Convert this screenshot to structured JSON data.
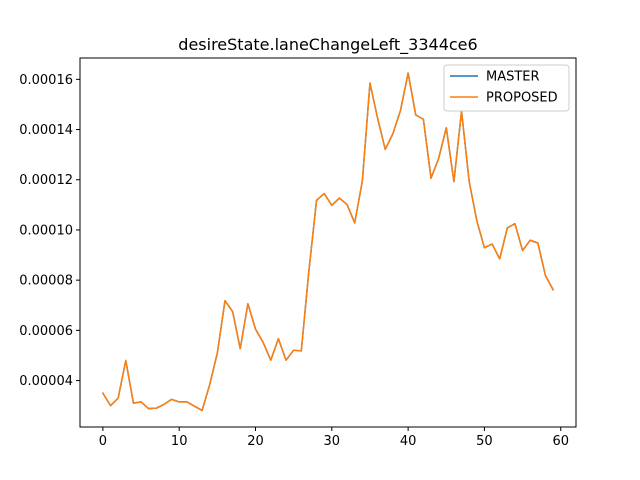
{
  "chart_data": {
    "type": "line",
    "title": "desireState.laneChangeLeft_3344ce6",
    "xlabel": "",
    "ylabel": "",
    "xlim": [
      -3.0,
      62.0
    ],
    "ylim": [
      2.15e-05,
      0.0001685
    ],
    "x_ticks": [
      0,
      10,
      20,
      30,
      40,
      50,
      60
    ],
    "x_tick_labels": [
      "0",
      "10",
      "20",
      "30",
      "40",
      "50",
      "60"
    ],
    "y_ticks": [
      4e-05,
      6e-05,
      8e-05,
      0.0001,
      0.00012,
      0.00014,
      0.00016
    ],
    "y_tick_labels": [
      "0.00004",
      "0.00006",
      "0.00008",
      "0.00010",
      "0.00012",
      "0.00014",
      "0.00016"
    ],
    "legend": {
      "position": "upper-right"
    },
    "series": [
      {
        "name": "MASTER",
        "color": "#1f77b4",
        "x": [
          0,
          1,
          2,
          3,
          4,
          5,
          6,
          7,
          8,
          9,
          10,
          11,
          12,
          13,
          14,
          15,
          16,
          17,
          18,
          19,
          20,
          21,
          22,
          23,
          24,
          25,
          26,
          27,
          28,
          29,
          30,
          31,
          32,
          33,
          34,
          35,
          36,
          37,
          38,
          39,
          40,
          41,
          42,
          43,
          44,
          45,
          46,
          47,
          48,
          49,
          50,
          51,
          52,
          53,
          54,
          55,
          56,
          57,
          58,
          59
        ],
        "values": [
          3.5e-05,
          3e-05,
          3.3e-05,
          4.8e-05,
          3.1e-05,
          3.15e-05,
          2.88e-05,
          2.9e-05,
          3.05e-05,
          3.25e-05,
          3.15e-05,
          3.15e-05,
          2.98e-05,
          2.81e-05,
          3.84e-05,
          5.1e-05,
          7.18e-05,
          6.75e-05,
          5.27e-05,
          7.06e-05,
          6.05e-05,
          5.52e-05,
          4.81e-05,
          5.67e-05,
          4.81e-05,
          5.21e-05,
          5.18e-05,
          8.38e-05,
          0.0001118,
          0.0001145,
          0.0001098,
          0.0001127,
          0.0001101,
          0.0001028,
          0.0001195,
          0.0001585,
          0.0001445,
          0.0001321,
          0.0001383,
          0.0001476,
          0.0001625,
          0.0001458,
          0.0001441,
          0.0001206,
          0.0001285,
          0.0001407,
          0.0001193,
          0.0001473,
          0.0001193,
          0.0001037,
          9.29e-05,
          9.44e-05,
          8.85e-05,
          0.0001008,
          0.0001025,
          9.18e-05,
          9.59e-05,
          9.48e-05,
          8.18e-05,
          7.62e-05
        ]
      },
      {
        "name": "PROPOSED",
        "color": "#ff7f0e",
        "x": [
          0,
          1,
          2,
          3,
          4,
          5,
          6,
          7,
          8,
          9,
          10,
          11,
          12,
          13,
          14,
          15,
          16,
          17,
          18,
          19,
          20,
          21,
          22,
          23,
          24,
          25,
          26,
          27,
          28,
          29,
          30,
          31,
          32,
          33,
          34,
          35,
          36,
          37,
          38,
          39,
          40,
          41,
          42,
          43,
          44,
          45,
          46,
          47,
          48,
          49,
          50,
          51,
          52,
          53,
          54,
          55,
          56,
          57,
          58,
          59
        ],
        "values": [
          3.5e-05,
          3e-05,
          3.3e-05,
          4.8e-05,
          3.1e-05,
          3.15e-05,
          2.88e-05,
          2.9e-05,
          3.05e-05,
          3.25e-05,
          3.15e-05,
          3.15e-05,
          2.98e-05,
          2.81e-05,
          3.84e-05,
          5.1e-05,
          7.18e-05,
          6.75e-05,
          5.27e-05,
          7.06e-05,
          6.05e-05,
          5.52e-05,
          4.81e-05,
          5.67e-05,
          4.81e-05,
          5.21e-05,
          5.18e-05,
          8.38e-05,
          0.0001118,
          0.0001145,
          0.0001098,
          0.0001127,
          0.0001101,
          0.0001028,
          0.0001195,
          0.0001585,
          0.0001445,
          0.0001321,
          0.0001383,
          0.0001476,
          0.0001625,
          0.0001458,
          0.0001441,
          0.0001206,
          0.0001285,
          0.0001407,
          0.0001193,
          0.0001473,
          0.0001193,
          0.0001037,
          9.29e-05,
          9.44e-05,
          8.85e-05,
          0.0001008,
          0.0001025,
          9.18e-05,
          9.59e-05,
          9.48e-05,
          8.18e-05,
          7.62e-05
        ]
      }
    ]
  }
}
